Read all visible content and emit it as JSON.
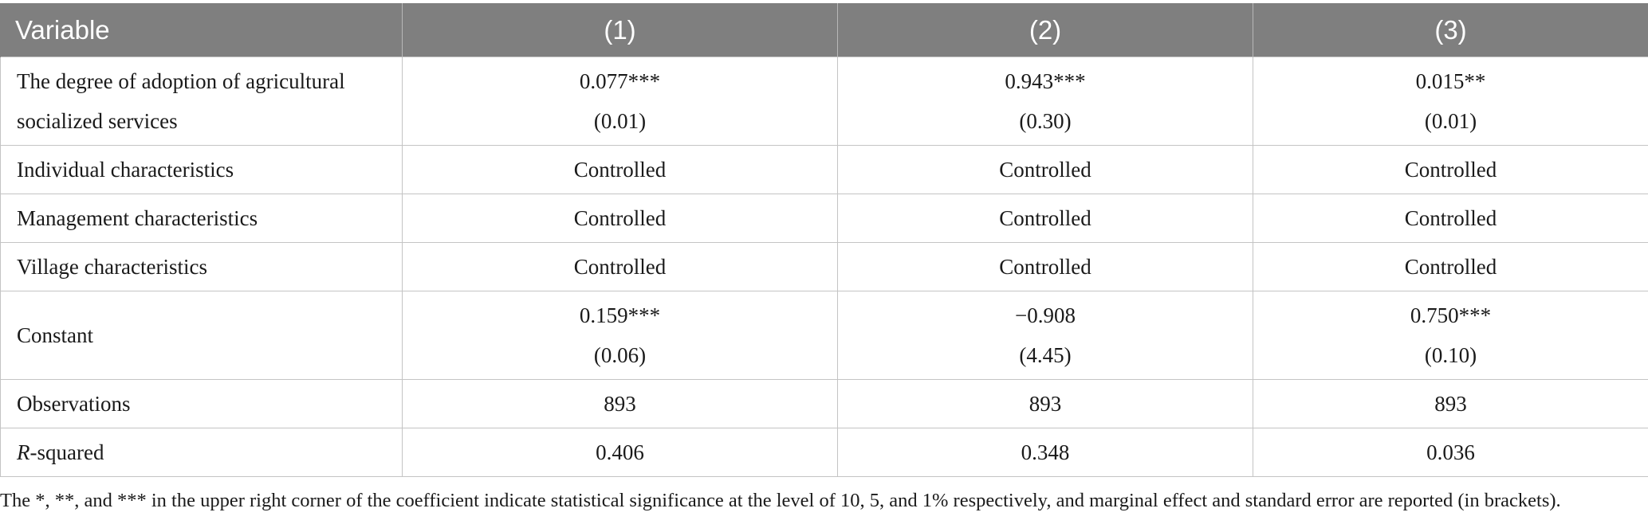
{
  "table": {
    "header": {
      "variable": "Variable",
      "col1": "(1)",
      "col2": "(2)",
      "col3": "(3)"
    },
    "rows": [
      {
        "label_line1": "The degree of adoption of agricultural",
        "label_line2": "socialized services",
        "c1_coef": "0.077***",
        "c1_se": "(0.01)",
        "c2_coef": "0.943***",
        "c2_se": "(0.30)",
        "c3_coef": "0.015**",
        "c3_se": "(0.01)"
      },
      {
        "label": "Individual characteristics",
        "c1": "Controlled",
        "c2": "Controlled",
        "c3": "Controlled"
      },
      {
        "label": "Management characteristics",
        "c1": "Controlled",
        "c2": "Controlled",
        "c3": "Controlled"
      },
      {
        "label": "Village characteristics",
        "c1": "Controlled",
        "c2": "Controlled",
        "c3": "Controlled"
      },
      {
        "label": "Constant",
        "c1_coef": "0.159***",
        "c1_se": "(0.06)",
        "c2_coef": "−0.908",
        "c2_se": "(4.45)",
        "c3_coef": "0.750***",
        "c3_se": "(0.10)"
      },
      {
        "label": "Observations",
        "c1": "893",
        "c2": "893",
        "c3": "893"
      },
      {
        "label_italic": "R",
        "label_rest": "-squared",
        "c1": "0.406",
        "c2": "0.348",
        "c3": "0.036"
      }
    ]
  },
  "footnote": "The *, **, and *** in the upper right corner of the coefficient indicate statistical significance at the level of 10, 5, and 1% respectively, and marginal effect and standard error are reported (in brackets).",
  "colors": {
    "header_bg": "#7f7f7f",
    "header_text": "#ffffff",
    "grid": "#c4c4c4"
  }
}
